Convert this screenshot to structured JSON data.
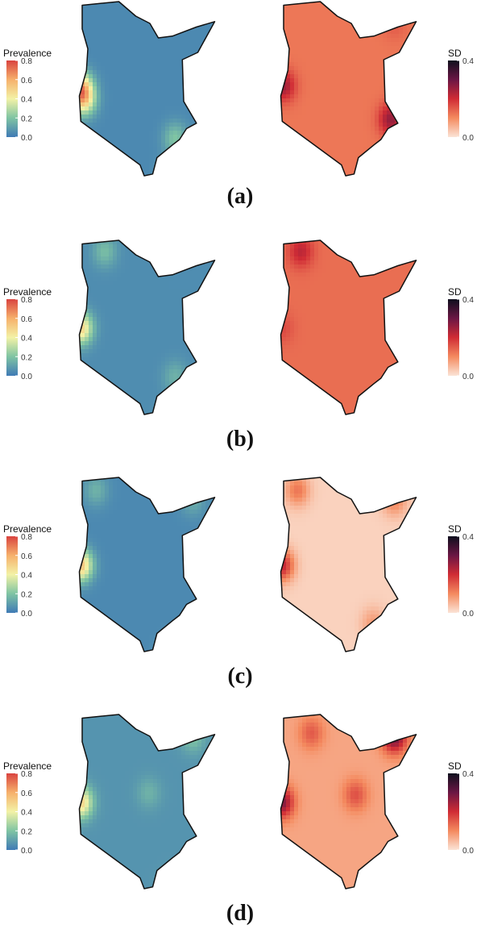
{
  "chart_data": [
    {
      "type": "heatmap",
      "panel": "(a)",
      "maps": [
        {
          "legend_title": "Prevalence",
          "scale_ticks": [
            "0.0",
            "0.2",
            "0.4",
            "0.6",
            "0.8"
          ],
          "range": [
            0,
            0.8
          ],
          "palette": "blue-green-yellow-red",
          "colors": [
            "#3f7ab5",
            "#7fc4a3",
            "#f3f2a6",
            "#f6b06b",
            "#d9433f"
          ],
          "hotspots": [
            {
              "lon": 34.1,
              "lat": 0.4,
              "value": 0.55
            },
            {
              "lon": 34.3,
              "lat": -0.3,
              "value": 0.4
            },
            {
              "lon": 39.5,
              "lat": -2.3,
              "value": 0.2
            },
            {
              "lon": 39.4,
              "lat": -4.2,
              "value": 0.25
            }
          ],
          "background_value": 0.04
        },
        {
          "legend_title": "SD",
          "scale_ticks": [
            "0.0",
            "0.4"
          ],
          "range": [
            0,
            0.4
          ],
          "palette": "light-orange-red-dark",
          "colors": [
            "#fbe4d6",
            "#f48a5f",
            "#d02c35",
            "#6b1644",
            "#0f0f1e"
          ],
          "hotspots": [
            {
              "lon": 40.3,
              "lat": -1.3,
              "value": 0.26
            },
            {
              "lon": 34.2,
              "lat": 0.5,
              "value": 0.25
            },
            {
              "lon": 39.3,
              "lat": -4.4,
              "value": 0.18
            },
            {
              "lon": 40.5,
              "lat": 3.8,
              "value": 0.15
            }
          ],
          "background_value": 0.12
        }
      ]
    },
    {
      "type": "heatmap",
      "panel": "(b)",
      "maps": [
        {
          "legend_title": "Prevalence",
          "scale_ticks": [
            "0.0",
            "0.2",
            "0.4",
            "0.6",
            "0.8"
          ],
          "range": [
            0,
            0.8
          ],
          "palette": "blue-green-yellow-red",
          "colors": [
            "#3f7ab5",
            "#7fc4a3",
            "#f3f2a6",
            "#f6b06b",
            "#d9433f"
          ],
          "hotspots": [
            {
              "lon": 34.1,
              "lat": 0.3,
              "value": 0.5
            },
            {
              "lon": 35.5,
              "lat": 4.4,
              "value": 0.18
            },
            {
              "lon": 39.5,
              "lat": -2.3,
              "value": 0.15
            },
            {
              "lon": 39.4,
              "lat": -4.4,
              "value": 0.2
            }
          ],
          "background_value": 0.05
        },
        {
          "legend_title": "SD",
          "scale_ticks": [
            "0.0",
            "0.4"
          ],
          "range": [
            0,
            0.4
          ],
          "palette": "light-orange-red-dark",
          "colors": [
            "#fbe4d6",
            "#f48a5f",
            "#d02c35",
            "#6b1644",
            "#0f0f1e"
          ],
          "hotspots": [
            {
              "lon": 35.2,
              "lat": 4.4,
              "value": 0.22
            },
            {
              "lon": 34.1,
              "lat": 0.3,
              "value": 0.17
            }
          ],
          "background_value": 0.13
        }
      ]
    },
    {
      "type": "heatmap",
      "panel": "(c)",
      "maps": [
        {
          "legend_title": "Prevalence",
          "scale_ticks": [
            "0.0",
            "0.2",
            "0.4",
            "0.6",
            "0.8"
          ],
          "range": [
            0,
            0.8
          ],
          "palette": "blue-green-yellow-red",
          "colors": [
            "#3f7ab5",
            "#7fc4a3",
            "#f3f2a6",
            "#f6b06b",
            "#d9433f"
          ],
          "hotspots": [
            {
              "lon": 34.1,
              "lat": 0.3,
              "value": 0.55
            },
            {
              "lon": 35.0,
              "lat": 4.3,
              "value": 0.15
            },
            {
              "lon": 40.5,
              "lat": 3.8,
              "value": 0.14
            },
            {
              "lon": 39.3,
              "lat": -4.4,
              "value": 0.18
            }
          ],
          "background_value": 0.04
        },
        {
          "legend_title": "SD",
          "scale_ticks": [
            "0.0",
            "0.4"
          ],
          "range": [
            0,
            0.4
          ],
          "palette": "light-orange-red-dark",
          "colors": [
            "#fbe4d6",
            "#f48a5f",
            "#d02c35",
            "#6b1644",
            "#0f0f1e"
          ],
          "hotspots": [
            {
              "lon": 34.1,
              "lat": 0.3,
              "value": 0.22
            },
            {
              "lon": 35.0,
              "lat": 4.3,
              "value": 0.12
            },
            {
              "lon": 40.5,
              "lat": 3.8,
              "value": 0.11
            },
            {
              "lon": 39.3,
              "lat": -2.8,
              "value": 0.08
            }
          ],
          "background_value": 0.02
        }
      ]
    },
    {
      "type": "heatmap",
      "panel": "(d)",
      "maps": [
        {
          "legend_title": "Prevalence",
          "scale_ticks": [
            "0.0",
            "0.2",
            "0.4",
            "0.6",
            "0.8"
          ],
          "range": [
            0,
            0.8
          ],
          "palette": "blue-green-yellow-red",
          "colors": [
            "#3f7ab5",
            "#7fc4a3",
            "#f3f2a6",
            "#f6b06b",
            "#d9433f"
          ],
          "hotspots": [
            {
              "lon": 34.1,
              "lat": 0.3,
              "value": 0.5
            },
            {
              "lon": 38.0,
              "lat": 0.8,
              "value": 0.15
            },
            {
              "lon": 40.5,
              "lat": 3.8,
              "value": 0.2
            },
            {
              "lon": 39.3,
              "lat": -4.3,
              "value": 0.18
            }
          ],
          "background_value": 0.07
        },
        {
          "legend_title": "SD",
          "scale_ticks": [
            "0.0",
            "0.4"
          ],
          "range": [
            0,
            0.4
          ],
          "palette": "light-orange-red-dark",
          "colors": [
            "#fbe4d6",
            "#f48a5f",
            "#d02c35",
            "#6b1644",
            "#0f0f1e"
          ],
          "hotspots": [
            {
              "lon": 40.5,
              "lat": 3.8,
              "value": 0.3
            },
            {
              "lon": 34.1,
              "lat": 0.3,
              "value": 0.28
            },
            {
              "lon": 35.8,
              "lat": 4.0,
              "value": 0.15
            },
            {
              "lon": 38.3,
              "lat": 0.7,
              "value": 0.16
            },
            {
              "lon": 39.4,
              "lat": -4.5,
              "value": 0.1
            }
          ],
          "background_value": 0.07
        }
      ]
    }
  ]
}
